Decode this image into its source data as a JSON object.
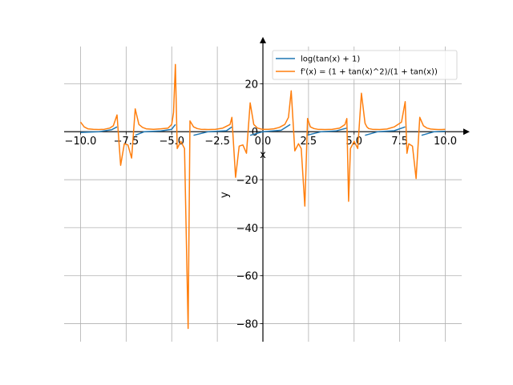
{
  "chart_data": {
    "type": "line",
    "xlabel": "x",
    "ylabel": "y",
    "xlim": [
      -10.9,
      10.9
    ],
    "ylim": [
      -87.5,
      35.5
    ],
    "x_ticks": [
      -10.0,
      -7.5,
      -5.0,
      -2.5,
      0.0,
      2.5,
      5.0,
      7.5,
      10.0
    ],
    "x_tick_labels": [
      "−10.0",
      "−7.5",
      "−5.0",
      "−2.5",
      "0.0",
      "2.5",
      "5.0",
      "7.5",
      "10.0"
    ],
    "y_ticks": [
      -80,
      -60,
      -40,
      -20,
      0,
      20
    ],
    "y_tick_labels": [
      "−80",
      "−60",
      "−40",
      "−20",
      "0",
      "20"
    ],
    "grid": true,
    "legend_position": "top-right",
    "series": [
      {
        "name": "log(tan(x) + 1)",
        "color": "#1f77b4",
        "segments": [
          [
            [
              -10.0,
              -0.3
            ],
            [
              -9.0,
              0.0
            ],
            [
              -8.3,
              0.8
            ],
            [
              -8.0,
              2.0
            ]
          ],
          [
            [
              -7.0,
              -1.5
            ],
            [
              -6.5,
              0.0
            ],
            [
              -5.6,
              0.3
            ],
            [
              -5.0,
              1.0
            ],
            [
              -4.8,
              3.0
            ]
          ],
          [
            [
              -3.8,
              -1.5
            ],
            [
              -3.0,
              0.0
            ],
            [
              -2.0,
              0.4
            ],
            [
              -1.7,
              2.0
            ]
          ],
          [
            [
              -0.7,
              -1.5
            ],
            [
              0.0,
              0.0
            ],
            [
              1.0,
              0.6
            ],
            [
              1.5,
              3.0
            ]
          ],
          [
            [
              2.4,
              -1.5
            ],
            [
              3.2,
              0.0
            ],
            [
              4.0,
              0.3
            ],
            [
              4.6,
              1.5
            ]
          ],
          [
            [
              5.6,
              -1.5
            ],
            [
              6.3,
              0.0
            ],
            [
              7.2,
              0.4
            ],
            [
              7.8,
              2.0
            ]
          ],
          [
            [
              8.7,
              -1.5
            ],
            [
              9.4,
              0.0
            ],
            [
              10.0,
              0.2
            ]
          ]
        ]
      },
      {
        "name": "f'(x) = (1 + tan(x)^2)/(1 + tan(x))",
        "color": "#ff7f0e",
        "x": [
          -10.0,
          -9.8,
          -9.6,
          -9.3,
          -9.0,
          -8.7,
          -8.4,
          -8.2,
          -8.0,
          -7.8,
          -7.6,
          -7.4,
          -7.2,
          -7.0,
          -6.8,
          -6.6,
          -6.4,
          -6.0,
          -5.6,
          -5.2,
          -5.0,
          -4.9,
          -4.8,
          -4.7,
          -4.5,
          -4.3,
          -4.1,
          -4.0,
          -3.8,
          -3.6,
          -3.4,
          -3.0,
          -2.6,
          -2.2,
          -1.8,
          -1.7,
          -1.5,
          -1.3,
          -1.1,
          -0.9,
          -0.7,
          -0.5,
          -0.3,
          -0.1,
          0.0,
          0.3,
          0.6,
          0.9,
          1.2,
          1.4,
          1.55,
          1.75,
          1.95,
          2.1,
          2.3,
          2.45,
          2.6,
          2.8,
          3.0,
          3.4,
          3.8,
          4.2,
          4.5,
          4.6,
          4.7,
          4.8,
          5.0,
          5.2,
          5.4,
          5.6,
          5.7,
          5.8,
          6.0,
          6.4,
          6.8,
          7.2,
          7.6,
          7.8,
          7.9,
          8.0,
          8.2,
          8.4,
          8.6,
          8.8,
          9.0,
          9.2,
          9.4,
          9.6,
          9.8,
          10.0
        ],
        "y": [
          4.0,
          2.0,
          1.2,
          1.0,
          0.9,
          1.0,
          1.5,
          2.5,
          7.0,
          -14.0,
          -5.0,
          -5.5,
          -11.0,
          9.5,
          3.0,
          1.8,
          1.2,
          1.0,
          1.2,
          1.5,
          3.0,
          8.0,
          28.0,
          -7.0,
          -4.0,
          -7.0,
          -82.0,
          4.5,
          2.0,
          1.3,
          1.0,
          0.9,
          1.0,
          1.5,
          3.0,
          6.0,
          -19.0,
          -6.0,
          -5.5,
          -9.0,
          12.0,
          3.0,
          1.5,
          1.1,
          1.0,
          1.0,
          1.2,
          1.8,
          3.0,
          6.0,
          17.0,
          -8.0,
          -5.0,
          -7.0,
          -31.0,
          5.5,
          2.0,
          1.3,
          1.0,
          0.9,
          1.0,
          1.5,
          3.0,
          5.5,
          -29.0,
          -7.0,
          -4.0,
          -7.0,
          16.0,
          3.5,
          2.0,
          1.3,
          1.0,
          0.9,
          1.1,
          2.0,
          4.0,
          12.5,
          -9.0,
          -5.0,
          -6.0,
          -19.5,
          6.0,
          2.5,
          1.5,
          1.1,
          1.0,
          0.9,
          0.9,
          1.0
        ]
      }
    ]
  }
}
